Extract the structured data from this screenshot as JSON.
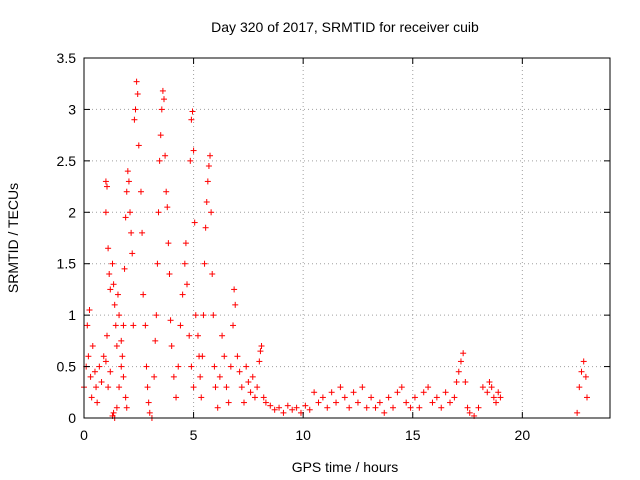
{
  "chart_data": {
    "type": "scatter",
    "title": "Day 320 of 2017, SRMTID for receiver cuib",
    "xlabel": "GPS time / hours",
    "ylabel": "SRMTID / TECUs",
    "xlim": [
      0,
      24
    ],
    "ylim": [
      0,
      3.5
    ],
    "xticks": [
      0,
      5,
      10,
      15,
      20
    ],
    "yticks": [
      0,
      0.5,
      1,
      1.5,
      2,
      2.5,
      3,
      3.5
    ],
    "x_tick_labels": [
      "0",
      "5",
      "10",
      "15",
      "20"
    ],
    "y_tick_labels": [
      "0",
      "0.5",
      "1",
      "1.5",
      "2",
      "2.5",
      "3",
      "3.5"
    ],
    "grid": true,
    "marker": "+",
    "color": "#ff0000",
    "series": [
      {
        "name": "SRMTID",
        "points": [
          [
            0.0,
            0.3
          ],
          [
            0.1,
            0.5
          ],
          [
            0.15,
            0.9
          ],
          [
            0.2,
            0.6
          ],
          [
            0.25,
            1.05
          ],
          [
            0.3,
            0.4
          ],
          [
            0.35,
            0.2
          ],
          [
            0.4,
            0.7
          ],
          [
            0.5,
            0.45
          ],
          [
            0.55,
            0.3
          ],
          [
            0.6,
            0.15
          ],
          [
            0.7,
            0.5
          ],
          [
            0.8,
            0.35
          ],
          [
            0.9,
            0.6
          ],
          [
            1.0,
            0.55
          ],
          [
            1.05,
            0.8
          ],
          [
            1.1,
            0.3
          ],
          [
            1.2,
            0.45
          ],
          [
            1.3,
            1.5
          ],
          [
            1.35,
            1.3
          ],
          [
            1.4,
            1.1
          ],
          [
            1.45,
            0.9
          ],
          [
            1.5,
            0.7
          ],
          [
            1.55,
            1.2
          ],
          [
            1.6,
            1.0
          ],
          [
            1.7,
            0.75
          ],
          [
            1.75,
            0.6
          ],
          [
            1.8,
            0.4
          ],
          [
            1.9,
            0.2
          ],
          [
            1.95,
            0.1
          ],
          [
            1.0,
            2.3
          ],
          [
            1.05,
            2.25
          ],
          [
            1.0,
            2.0
          ],
          [
            1.1,
            1.65
          ],
          [
            1.15,
            1.4
          ],
          [
            1.2,
            1.25
          ],
          [
            1.3,
            0.02
          ],
          [
            1.35,
            0.05
          ],
          [
            1.4,
            0.0
          ],
          [
            1.5,
            0.1
          ],
          [
            1.6,
            0.3
          ],
          [
            1.7,
            0.5
          ],
          [
            1.8,
            0.9
          ],
          [
            1.85,
            1.45
          ],
          [
            1.9,
            1.95
          ],
          [
            1.95,
            2.2
          ],
          [
            2.0,
            2.4
          ],
          [
            2.05,
            2.3
          ],
          [
            2.1,
            2.0
          ],
          [
            2.15,
            1.8
          ],
          [
            2.2,
            1.6
          ],
          [
            2.25,
            0.9
          ],
          [
            2.3,
            2.9
          ],
          [
            2.35,
            3.0
          ],
          [
            2.4,
            3.27
          ],
          [
            2.45,
            3.15
          ],
          [
            2.5,
            2.65
          ],
          [
            2.6,
            2.2
          ],
          [
            2.65,
            1.8
          ],
          [
            2.7,
            1.2
          ],
          [
            2.8,
            0.9
          ],
          [
            2.85,
            0.5
          ],
          [
            2.9,
            0.3
          ],
          [
            2.95,
            0.15
          ],
          [
            3.0,
            0.05
          ],
          [
            3.1,
            0.0
          ],
          [
            3.2,
            0.4
          ],
          [
            3.25,
            0.75
          ],
          [
            3.3,
            1.0
          ],
          [
            3.35,
            1.5
          ],
          [
            3.4,
            2.0
          ],
          [
            3.45,
            2.5
          ],
          [
            3.5,
            2.75
          ],
          [
            3.55,
            3.0
          ],
          [
            3.6,
            3.18
          ],
          [
            3.65,
            3.1
          ],
          [
            3.7,
            2.55
          ],
          [
            3.75,
            2.2
          ],
          [
            3.8,
            2.05
          ],
          [
            3.85,
            1.7
          ],
          [
            3.9,
            1.4
          ],
          [
            3.95,
            0.95
          ],
          [
            4.0,
            0.7
          ],
          [
            4.1,
            0.4
          ],
          [
            4.2,
            0.2
          ],
          [
            4.3,
            0.5
          ],
          [
            4.4,
            0.9
          ],
          [
            4.5,
            1.2
          ],
          [
            4.6,
            1.5
          ],
          [
            4.65,
            1.7
          ],
          [
            4.7,
            1.3
          ],
          [
            4.8,
            0.8
          ],
          [
            4.9,
            0.5
          ],
          [
            5.0,
            0.3
          ],
          [
            4.85,
            2.5
          ],
          [
            4.9,
            2.9
          ],
          [
            4.95,
            2.98
          ],
          [
            5.0,
            2.6
          ],
          [
            5.05,
            1.9
          ],
          [
            5.1,
            1.0
          ],
          [
            5.2,
            0.8
          ],
          [
            5.25,
            0.6
          ],
          [
            5.3,
            0.4
          ],
          [
            5.35,
            0.2
          ],
          [
            5.4,
            0.6
          ],
          [
            5.45,
            1.0
          ],
          [
            5.5,
            1.5
          ],
          [
            5.55,
            1.85
          ],
          [
            5.6,
            2.1
          ],
          [
            5.65,
            2.3
          ],
          [
            5.7,
            2.45
          ],
          [
            5.75,
            2.55
          ],
          [
            5.8,
            2.0
          ],
          [
            5.85,
            1.4
          ],
          [
            5.9,
            1.0
          ],
          [
            5.95,
            0.5
          ],
          [
            6.0,
            0.3
          ],
          [
            6.1,
            0.1
          ],
          [
            6.2,
            0.4
          ],
          [
            6.3,
            0.8
          ],
          [
            6.4,
            0.6
          ],
          [
            6.5,
            0.3
          ],
          [
            6.6,
            0.15
          ],
          [
            6.7,
            0.5
          ],
          [
            6.8,
            0.9
          ],
          [
            6.85,
            1.25
          ],
          [
            6.9,
            1.1
          ],
          [
            7.0,
            0.6
          ],
          [
            7.1,
            0.45
          ],
          [
            7.2,
            0.3
          ],
          [
            7.3,
            0.15
          ],
          [
            7.4,
            0.5
          ],
          [
            7.5,
            0.35
          ],
          [
            7.6,
            0.25
          ],
          [
            7.7,
            0.4
          ],
          [
            7.8,
            0.2
          ],
          [
            7.9,
            0.3
          ],
          [
            8.0,
            0.55
          ],
          [
            8.05,
            0.65
          ],
          [
            8.1,
            0.7
          ],
          [
            8.2,
            0.2
          ],
          [
            8.3,
            0.15
          ],
          [
            8.5,
            0.12
          ],
          [
            8.7,
            0.08
          ],
          [
            8.9,
            0.1
          ],
          [
            9.1,
            0.05
          ],
          [
            9.3,
            0.12
          ],
          [
            9.5,
            0.08
          ],
          [
            9.7,
            0.1
          ],
          [
            9.9,
            0.05
          ],
          [
            10.1,
            0.12
          ],
          [
            10.3,
            0.08
          ],
          [
            10.5,
            0.25
          ],
          [
            10.7,
            0.15
          ],
          [
            10.9,
            0.2
          ],
          [
            11.1,
            0.1
          ],
          [
            11.3,
            0.25
          ],
          [
            11.5,
            0.15
          ],
          [
            11.7,
            0.3
          ],
          [
            11.9,
            0.2
          ],
          [
            12.1,
            0.1
          ],
          [
            12.3,
            0.25
          ],
          [
            12.5,
            0.15
          ],
          [
            12.7,
            0.3
          ],
          [
            12.9,
            0.1
          ],
          [
            13.1,
            0.2
          ],
          [
            13.3,
            0.1
          ],
          [
            13.5,
            0.15
          ],
          [
            13.7,
            0.05
          ],
          [
            13.9,
            0.2
          ],
          [
            14.1,
            0.1
          ],
          [
            14.3,
            0.25
          ],
          [
            14.5,
            0.3
          ],
          [
            14.7,
            0.15
          ],
          [
            14.9,
            0.1
          ],
          [
            15.1,
            0.2
          ],
          [
            15.3,
            0.1
          ],
          [
            15.5,
            0.25
          ],
          [
            15.7,
            0.3
          ],
          [
            15.9,
            0.15
          ],
          [
            16.1,
            0.2
          ],
          [
            16.3,
            0.1
          ],
          [
            16.5,
            0.25
          ],
          [
            16.7,
            0.15
          ],
          [
            16.9,
            0.2
          ],
          [
            17.0,
            0.35
          ],
          [
            17.1,
            0.45
          ],
          [
            17.2,
            0.55
          ],
          [
            17.3,
            0.63
          ],
          [
            17.4,
            0.35
          ],
          [
            17.5,
            0.1
          ],
          [
            17.6,
            0.05
          ],
          [
            17.8,
            0.02
          ],
          [
            18.0,
            0.1
          ],
          [
            18.2,
            0.3
          ],
          [
            18.4,
            0.25
          ],
          [
            18.5,
            0.35
          ],
          [
            18.6,
            0.3
          ],
          [
            18.7,
            0.2
          ],
          [
            18.8,
            0.15
          ],
          [
            18.9,
            0.25
          ],
          [
            19.0,
            0.2
          ],
          [
            22.5,
            0.05
          ],
          [
            22.6,
            0.3
          ],
          [
            22.7,
            0.45
          ],
          [
            22.8,
            0.55
          ],
          [
            22.9,
            0.4
          ],
          [
            22.95,
            0.2
          ]
        ]
      }
    ]
  }
}
